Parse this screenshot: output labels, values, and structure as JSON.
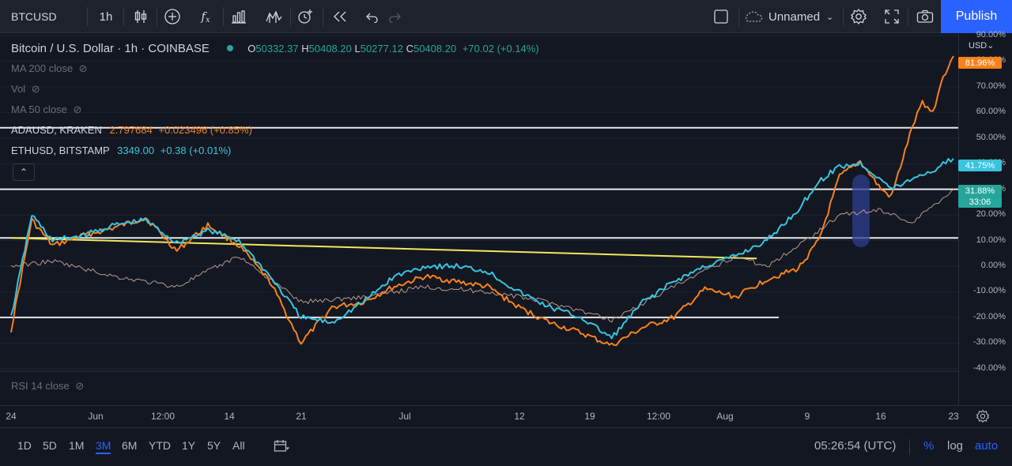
{
  "toolbar": {
    "symbol": "BTCUSD",
    "interval": "1h",
    "layout_name": "Unnamed",
    "publish_label": "Publish"
  },
  "legend": {
    "title": "Bitcoin / U.S. Dollar · 1h · COINBASE",
    "ohlc": {
      "o_label": "O",
      "o": "50332.37",
      "h_label": "H",
      "h": "50408.20",
      "l_label": "L",
      "l": "50277.12",
      "c_label": "C",
      "c": "50408.20",
      "change": "+70.02 (+0.14%)"
    },
    "indicators": [
      {
        "label": "MA 200 close"
      },
      {
        "label": "Vol"
      },
      {
        "label": "MA 50 close"
      }
    ],
    "compare": [
      {
        "symbol": "ADAUSD, KRAKEN",
        "value": "2.797684",
        "change": "+0.023496 (+0.85%)",
        "color": "#f7821b"
      },
      {
        "symbol": "ETHUSD, BITSTAMP",
        "value": "3349.00",
        "change": "+0.38 (+0.01%)",
        "color": "#38c4dd"
      }
    ],
    "bottom_indicator": "RSI 14 close"
  },
  "price_scale": {
    "currency": "USD",
    "ticks": [
      "90.00%",
      "80.00%",
      "70.00%",
      "60.00%",
      "50.00%",
      "40.00%",
      "30.00%",
      "20.00%",
      "10.00%",
      "0.00%",
      "-10.00%",
      "-20.00%",
      "-30.00%",
      "-40.00%"
    ],
    "tags": [
      {
        "text": "81.96%",
        "color": "#f7821b"
      },
      {
        "text": "41.75%",
        "color": "#38c4dd"
      },
      {
        "text": "31.88%",
        "color": "#26a69a"
      },
      {
        "text": "33:06",
        "color": "#26a69a"
      }
    ]
  },
  "time_scale": {
    "labels": [
      "24",
      "Jun",
      "12:00",
      "14",
      "21",
      "Jul",
      "12",
      "19",
      "12:00",
      "Aug",
      "9",
      "16",
      "23"
    ]
  },
  "bottom_bar": {
    "ranges": [
      "1D",
      "5D",
      "1M",
      "3M",
      "6M",
      "YTD",
      "1Y",
      "5Y",
      "All"
    ],
    "active_range": "3M",
    "clock": "05:26:54 (UTC)",
    "percent": "%",
    "log": "log",
    "auto": "auto"
  },
  "chart_data": {
    "type": "line",
    "x_range": [
      "2021-05-24",
      "2021-08-23"
    ],
    "ylim": [
      -40,
      90
    ],
    "y_unit": "%",
    "series": [
      {
        "name": "ADAUSD, KRAKEN",
        "color": "#f7821b",
        "x": [
          "2021-05-24",
          "2021-05-26",
          "2021-05-28",
          "2021-05-31",
          "2021-06-03",
          "2021-06-06",
          "2021-06-09",
          "2021-06-12",
          "2021-06-15",
          "2021-06-18",
          "2021-06-21",
          "2021-06-24",
          "2021-06-27",
          "2021-06-30",
          "2021-07-03",
          "2021-07-06",
          "2021-07-09",
          "2021-07-12",
          "2021-07-15",
          "2021-07-18",
          "2021-07-21",
          "2021-07-24",
          "2021-07-27",
          "2021-07-30",
          "2021-08-02",
          "2021-08-05",
          "2021-08-08",
          "2021-08-10",
          "2021-08-12",
          "2021-08-14",
          "2021-08-16",
          "2021-08-17",
          "2021-08-19",
          "2021-08-20",
          "2021-08-21",
          "2021-08-22",
          "2021-08-23"
        ],
        "values": [
          -25,
          18,
          8,
          12,
          15,
          19,
          6,
          16,
          8,
          -6,
          -30,
          -16,
          -14,
          -8,
          -4,
          -6,
          -8,
          -16,
          -22,
          -26,
          -31,
          -24,
          -20,
          -9,
          -12,
          -5,
          -1,
          10,
          35,
          41,
          30,
          27,
          54,
          64,
          60,
          74,
          82
        ]
      },
      {
        "name": "ETHUSD, BITSTAMP",
        "color": "#38c4dd",
        "x": [
          "2021-05-24",
          "2021-05-26",
          "2021-05-28",
          "2021-05-31",
          "2021-06-03",
          "2021-06-06",
          "2021-06-09",
          "2021-06-12",
          "2021-06-15",
          "2021-06-18",
          "2021-06-21",
          "2021-06-24",
          "2021-06-27",
          "2021-06-30",
          "2021-07-03",
          "2021-07-06",
          "2021-07-09",
          "2021-07-12",
          "2021-07-15",
          "2021-07-18",
          "2021-07-21",
          "2021-07-24",
          "2021-07-27",
          "2021-07-30",
          "2021-08-02",
          "2021-08-05",
          "2021-08-08",
          "2021-08-10",
          "2021-08-12",
          "2021-08-14",
          "2021-08-16",
          "2021-08-17",
          "2021-08-19",
          "2021-08-20",
          "2021-08-21",
          "2021-08-22",
          "2021-08-23"
        ],
        "values": [
          -20,
          20,
          10,
          12,
          16,
          18,
          9,
          14,
          10,
          -4,
          -20,
          -22,
          -14,
          -4,
          0,
          0,
          -2,
          -10,
          -16,
          -20,
          -28,
          -14,
          -6,
          0,
          4,
          10,
          22,
          33,
          39,
          40,
          34,
          30,
          34,
          36,
          37,
          40,
          42
        ]
      },
      {
        "name": "BTCUSD, COINBASE",
        "color": "#b99b8a",
        "x": [
          "2021-05-24",
          "2021-05-28",
          "2021-06-03",
          "2021-06-09",
          "2021-06-15",
          "2021-06-21",
          "2021-06-27",
          "2021-07-03",
          "2021-07-09",
          "2021-07-15",
          "2021-07-21",
          "2021-07-27",
          "2021-08-02",
          "2021-08-05",
          "2021-08-08",
          "2021-08-12",
          "2021-08-16",
          "2021-08-19",
          "2021-08-23"
        ],
        "values": [
          0,
          2,
          -4,
          -8,
          4,
          -14,
          -12,
          -8,
          -10,
          -14,
          -21,
          -8,
          4,
          0,
          8,
          20,
          22,
          17,
          30
        ]
      }
    ],
    "horizontal_lines": [
      54,
      30,
      11,
      -20
    ],
    "trend_line": {
      "from": {
        "x": "2021-05-24",
        "y": 11
      },
      "to": {
        "x": "2021-08-04",
        "y": 3
      }
    }
  }
}
